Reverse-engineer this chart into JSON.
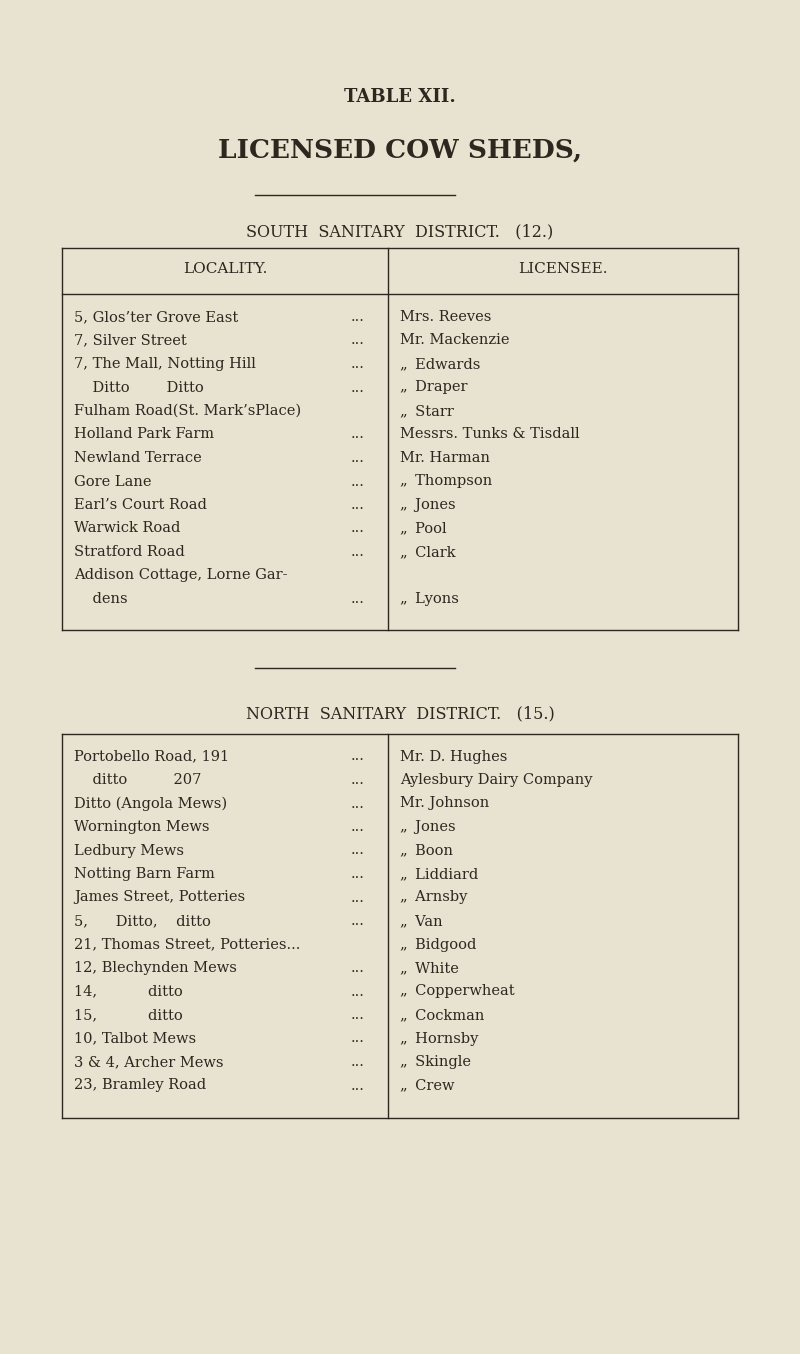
{
  "bg_color": "#e8e2d0",
  "text_color": "#2c2820",
  "title1": "TABLE XII.",
  "title2": "LICENSED COW SHEDS,",
  "south_header": "SOUTH  SANITARY  DISTRICT.   (12.)",
  "north_header": "NORTH  SANITARY  DISTRICT.   (15.)",
  "col_header_left": "LOCALITY.",
  "col_header_right": "LICENSEE.",
  "south_rows": [
    [
      "5, Glos’ter Grove East",
      "...",
      "Mrs. Reeves"
    ],
    [
      "7, Silver Street",
      "...",
      "Mr. Mackenzie"
    ],
    [
      "7, The Mall, Notting Hill",
      "...",
      "„  Edwards"
    ],
    [
      "    Ditto        Ditto",
      "...",
      "„  Draper"
    ],
    [
      "Fulham Road(St. Mark’sPlace)",
      "",
      "„  Starr"
    ],
    [
      "Holland Park Farm",
      "...",
      "Messrs. Tunks & Tisdall"
    ],
    [
      "Newland Terrace",
      "...",
      "Mr. Harman"
    ],
    [
      "Gore Lane",
      "...",
      "„  Thompson"
    ],
    [
      "Earl’s Court Road",
      "...",
      "„  Jones"
    ],
    [
      "Warwick Road",
      "...",
      "„  Pool"
    ],
    [
      "Stratford Road",
      "...",
      "„  Clark"
    ],
    [
      "Addison Cottage, Lorne Gar-",
      "",
      ""
    ],
    [
      "    dens",
      "...",
      "„  Lyons"
    ]
  ],
  "north_rows": [
    [
      "Portobello Road, 191",
      "...",
      "Mr. D. Hughes"
    ],
    [
      "    ditto          207",
      "...",
      "Aylesbury Dairy Company"
    ],
    [
      "Ditto (Angola Mews)",
      "...",
      "Mr. Johnson"
    ],
    [
      "Wornington Mews",
      "...",
      "„  Jones"
    ],
    [
      "Ledbury Mews",
      "...",
      "„  Boon"
    ],
    [
      "Notting Barn Farm",
      "...",
      "„  Liddiard"
    ],
    [
      "James Street, Potteries",
      "...",
      "„  Arnsby"
    ],
    [
      "5,      Ditto,    ditto",
      "...",
      "„  Van"
    ],
    [
      "21, Thomas Street, Potteries...",
      "",
      "„  Bidgood"
    ],
    [
      "12, Blechynden Mews",
      "...",
      "„  White"
    ],
    [
      "14,           ditto",
      "...",
      "„  Copperwheat"
    ],
    [
      "15,           ditto",
      "...",
      "„  Cockman"
    ],
    [
      "10, Talbot Mews",
      "...",
      "„  Hornsby"
    ],
    [
      "3 & 4, Archer Mews",
      "...",
      "„  Skingle"
    ],
    [
      "23, Bramley Road",
      "...",
      "„  Crew"
    ]
  ],
  "fig_width": 8.0,
  "fig_height": 13.54,
  "dpi": 100
}
